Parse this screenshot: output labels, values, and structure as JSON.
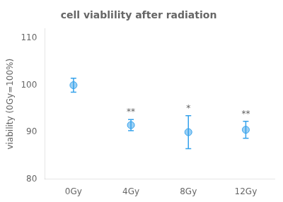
{
  "chart_data": {
    "type": "errorbar",
    "title": "cell viablility after radiation",
    "ylabel": "viability (0Gy=100%)",
    "categories": [
      "0Gy",
      "4Gy",
      "8Gy",
      "12Gy"
    ],
    "values": [
      100.0,
      91.5,
      90.0,
      90.5
    ],
    "errors": [
      1.5,
      1.2,
      3.5,
      1.8
    ],
    "annotations": [
      null,
      "**",
      "*",
      "**"
    ],
    "ylim": [
      80,
      112
    ],
    "yticks": [
      80,
      90,
      100,
      110
    ],
    "grid": false
  }
}
